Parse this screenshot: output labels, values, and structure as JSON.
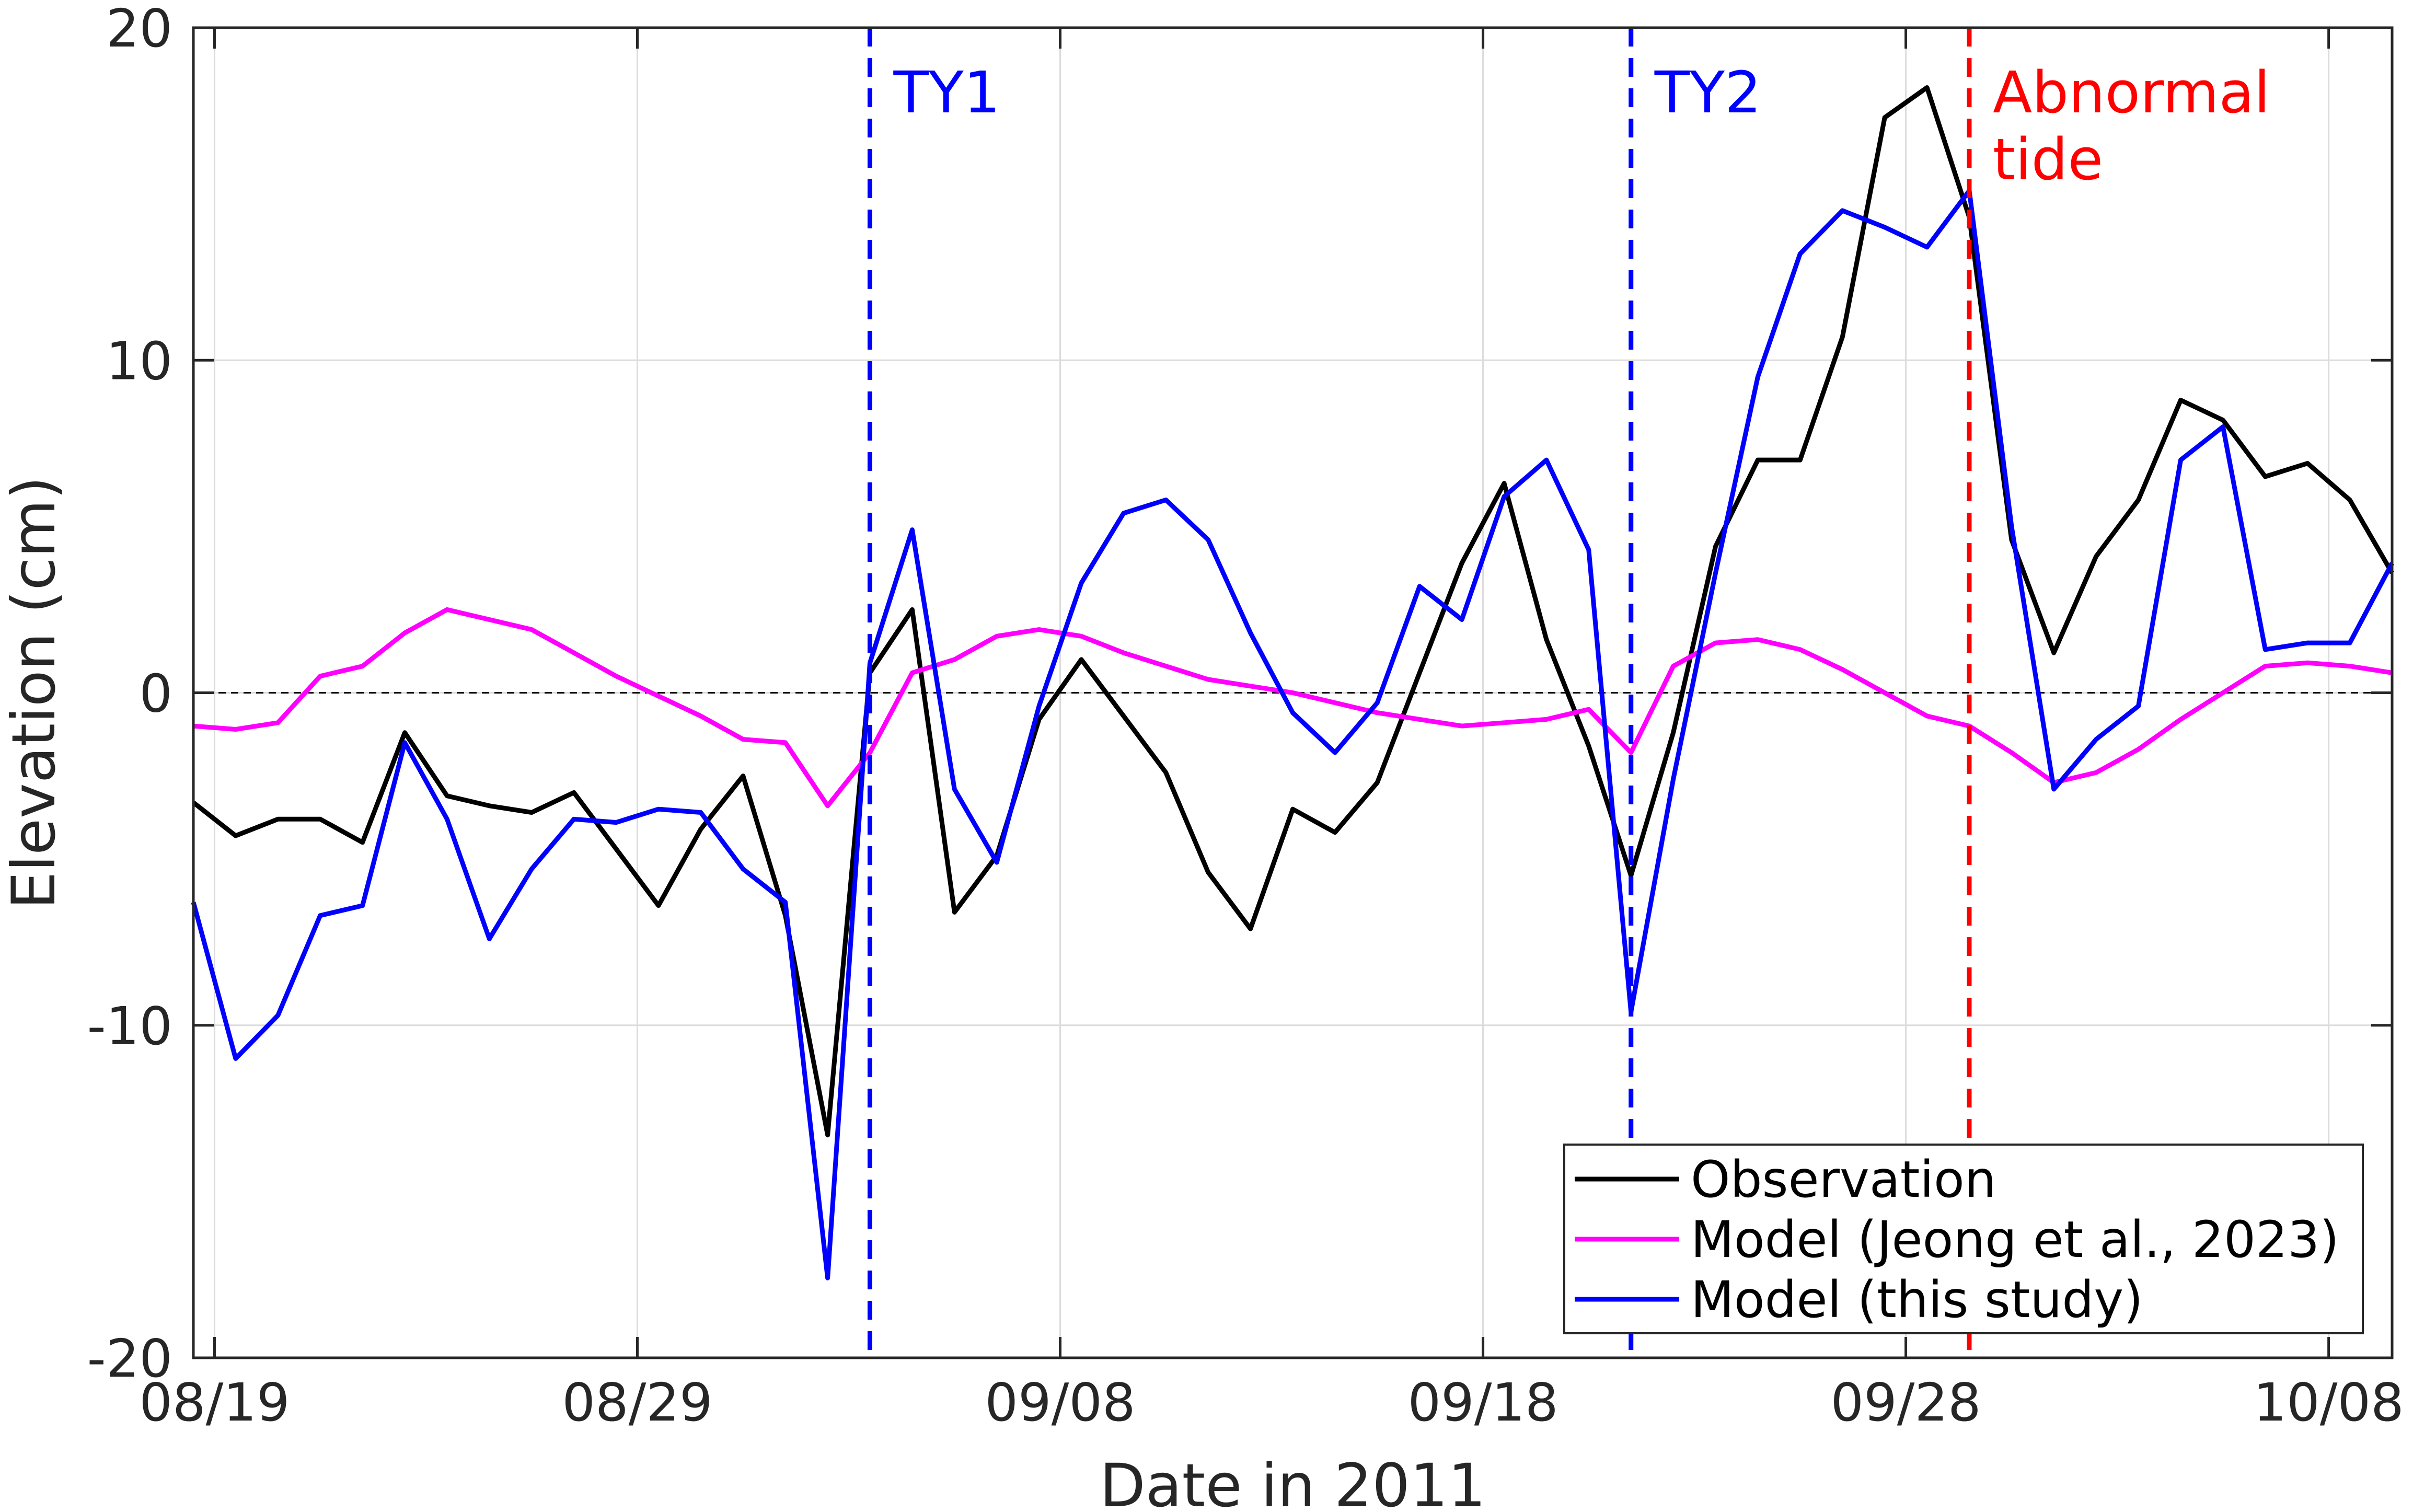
{
  "chart_data": {
    "type": "line",
    "title": "",
    "xlabel": "Date in 2011",
    "ylabel": "Elevation (cm)",
    "x_ticks": [
      "08/19",
      "08/29",
      "09/08",
      "09/18",
      "09/28",
      "10/08"
    ],
    "x_tick_days": [
      0,
      10,
      20,
      30,
      40,
      50
    ],
    "y_ticks": [
      "-20",
      "-10",
      "0",
      "10",
      "20"
    ],
    "y_tick_values": [
      -20,
      -10,
      0,
      10,
      20
    ],
    "xlim_days": [
      -0.5,
      51.5
    ],
    "ylim": [
      -20,
      20
    ],
    "x_origin_date": "2011-08-19",
    "grid": true,
    "zero_line": true,
    "legend_position": "bottom-right",
    "annotations": [
      {
        "label": "TY1",
        "day": 15.5,
        "color": "#0000ff",
        "lines": [
          "TY1"
        ]
      },
      {
        "label": "TY2",
        "day": 33.5,
        "color": "#0000ff",
        "lines": [
          "TY2"
        ]
      },
      {
        "label": "Abnormal tide",
        "day": 41.5,
        "color": "#ff0000",
        "lines": [
          "Abnormal",
          "tide"
        ]
      }
    ],
    "series": [
      {
        "name": "Observation",
        "color": "#000000",
        "x": [
          -0.5,
          0.5,
          1.5,
          2.5,
          3.5,
          4.5,
          5.5,
          6.5,
          7.5,
          8.5,
          9.5,
          10.5,
          11.5,
          12.5,
          13.5,
          14.5,
          15.5,
          16.5,
          17.5,
          18.5,
          19.5,
          20.5,
          21.5,
          22.5,
          23.5,
          24.5,
          25.5,
          26.5,
          27.5,
          28.5,
          29.5,
          30.5,
          31.5,
          32.5,
          33.5,
          34.5,
          35.5,
          36.5,
          37.5,
          38.5,
          39.5,
          40.5,
          41.5,
          42.5,
          43.5,
          44.5,
          45.5,
          46.5,
          47.5,
          48.5,
          49.5,
          50.5,
          51.5
        ],
        "values": [
          -3.3,
          -4.3,
          -3.8,
          -3.8,
          -4.5,
          -1.2,
          -3.1,
          -3.4,
          -3.6,
          -3.0,
          -4.7,
          -6.4,
          -4.1,
          -2.5,
          -6.7,
          -13.3,
          0.6,
          2.5,
          -6.6,
          -4.9,
          -0.8,
          1.0,
          -0.7,
          -2.4,
          -5.4,
          -7.1,
          -3.5,
          -4.2,
          -2.7,
          0.6,
          3.9,
          6.3,
          1.6,
          -1.6,
          -5.5,
          -1.2,
          4.4,
          7.0,
          7.0,
          10.7,
          17.3,
          18.2,
          14.3,
          4.6,
          1.2,
          4.1,
          5.8,
          8.8,
          8.2,
          6.5,
          6.9,
          5.8,
          3.6
        ]
      },
      {
        "name": "Model (Jeong et al., 2023)",
        "color": "#ff00ff",
        "x": [
          -0.5,
          0.5,
          1.5,
          2.5,
          3.5,
          4.5,
          5.5,
          6.5,
          7.5,
          8.5,
          9.5,
          10.5,
          11.5,
          12.5,
          13.5,
          14.5,
          15.5,
          16.5,
          17.5,
          18.5,
          19.5,
          20.5,
          21.5,
          22.5,
          23.5,
          24.5,
          25.5,
          26.5,
          27.5,
          28.5,
          29.5,
          30.5,
          31.5,
          32.5,
          33.5,
          34.5,
          35.5,
          36.5,
          37.5,
          38.5,
          39.5,
          40.5,
          41.5,
          42.5,
          43.5,
          44.5,
          45.5,
          46.5,
          47.5,
          48.5,
          49.5,
          50.5,
          51.5
        ],
        "values": [
          -1.0,
          -1.1,
          -0.9,
          0.5,
          0.8,
          1.8,
          2.5,
          2.2,
          1.9,
          1.2,
          0.5,
          -0.1,
          -0.7,
          -1.4,
          -1.5,
          -3.4,
          -1.8,
          0.6,
          1.0,
          1.7,
          1.9,
          1.7,
          1.2,
          0.8,
          0.4,
          0.2,
          0.0,
          -0.3,
          -0.6,
          -0.8,
          -1.0,
          -0.9,
          -0.8,
          -0.5,
          -1.8,
          0.8,
          1.5,
          1.6,
          1.3,
          0.7,
          0.0,
          -0.7,
          -1.0,
          -1.8,
          -2.7,
          -2.4,
          -1.7,
          -0.8,
          0.0,
          0.8,
          0.9,
          0.8,
          0.6
        ]
      },
      {
        "name": "Model (this study)",
        "color": "#0000ff",
        "x": [
          -0.5,
          0.5,
          1.5,
          2.5,
          3.5,
          4.5,
          5.5,
          6.5,
          7.5,
          8.5,
          9.5,
          10.5,
          11.5,
          12.5,
          13.5,
          14.5,
          15.5,
          16.5,
          17.5,
          18.5,
          19.5,
          20.5,
          21.5,
          22.5,
          23.5,
          24.5,
          25.5,
          26.5,
          27.5,
          28.5,
          29.5,
          30.5,
          31.5,
          32.5,
          33.5,
          34.5,
          35.5,
          36.5,
          37.5,
          38.5,
          39.5,
          40.5,
          41.5,
          42.5,
          43.5,
          44.5,
          45.5,
          46.5,
          47.5,
          48.5,
          49.5,
          50.5,
          51.5
        ],
        "values": [
          -6.3,
          -11.0,
          -9.7,
          -6.7,
          -6.4,
          -1.5,
          -3.8,
          -7.4,
          -5.3,
          -3.8,
          -3.9,
          -3.5,
          -3.6,
          -5.3,
          -6.3,
          -17.6,
          0.9,
          4.9,
          -2.9,
          -5.1,
          -0.4,
          3.3,
          5.4,
          5.8,
          4.6,
          1.8,
          -0.6,
          -1.8,
          -0.3,
          3.2,
          2.2,
          5.9,
          7.0,
          4.3,
          -9.6,
          -2.6,
          3.6,
          9.5,
          13.2,
          14.5,
          14.0,
          13.4,
          15.1,
          5.0,
          -2.9,
          -1.4,
          -0.4,
          7.0,
          8.0,
          1.3,
          1.5,
          1.5,
          3.9
        ]
      }
    ]
  }
}
